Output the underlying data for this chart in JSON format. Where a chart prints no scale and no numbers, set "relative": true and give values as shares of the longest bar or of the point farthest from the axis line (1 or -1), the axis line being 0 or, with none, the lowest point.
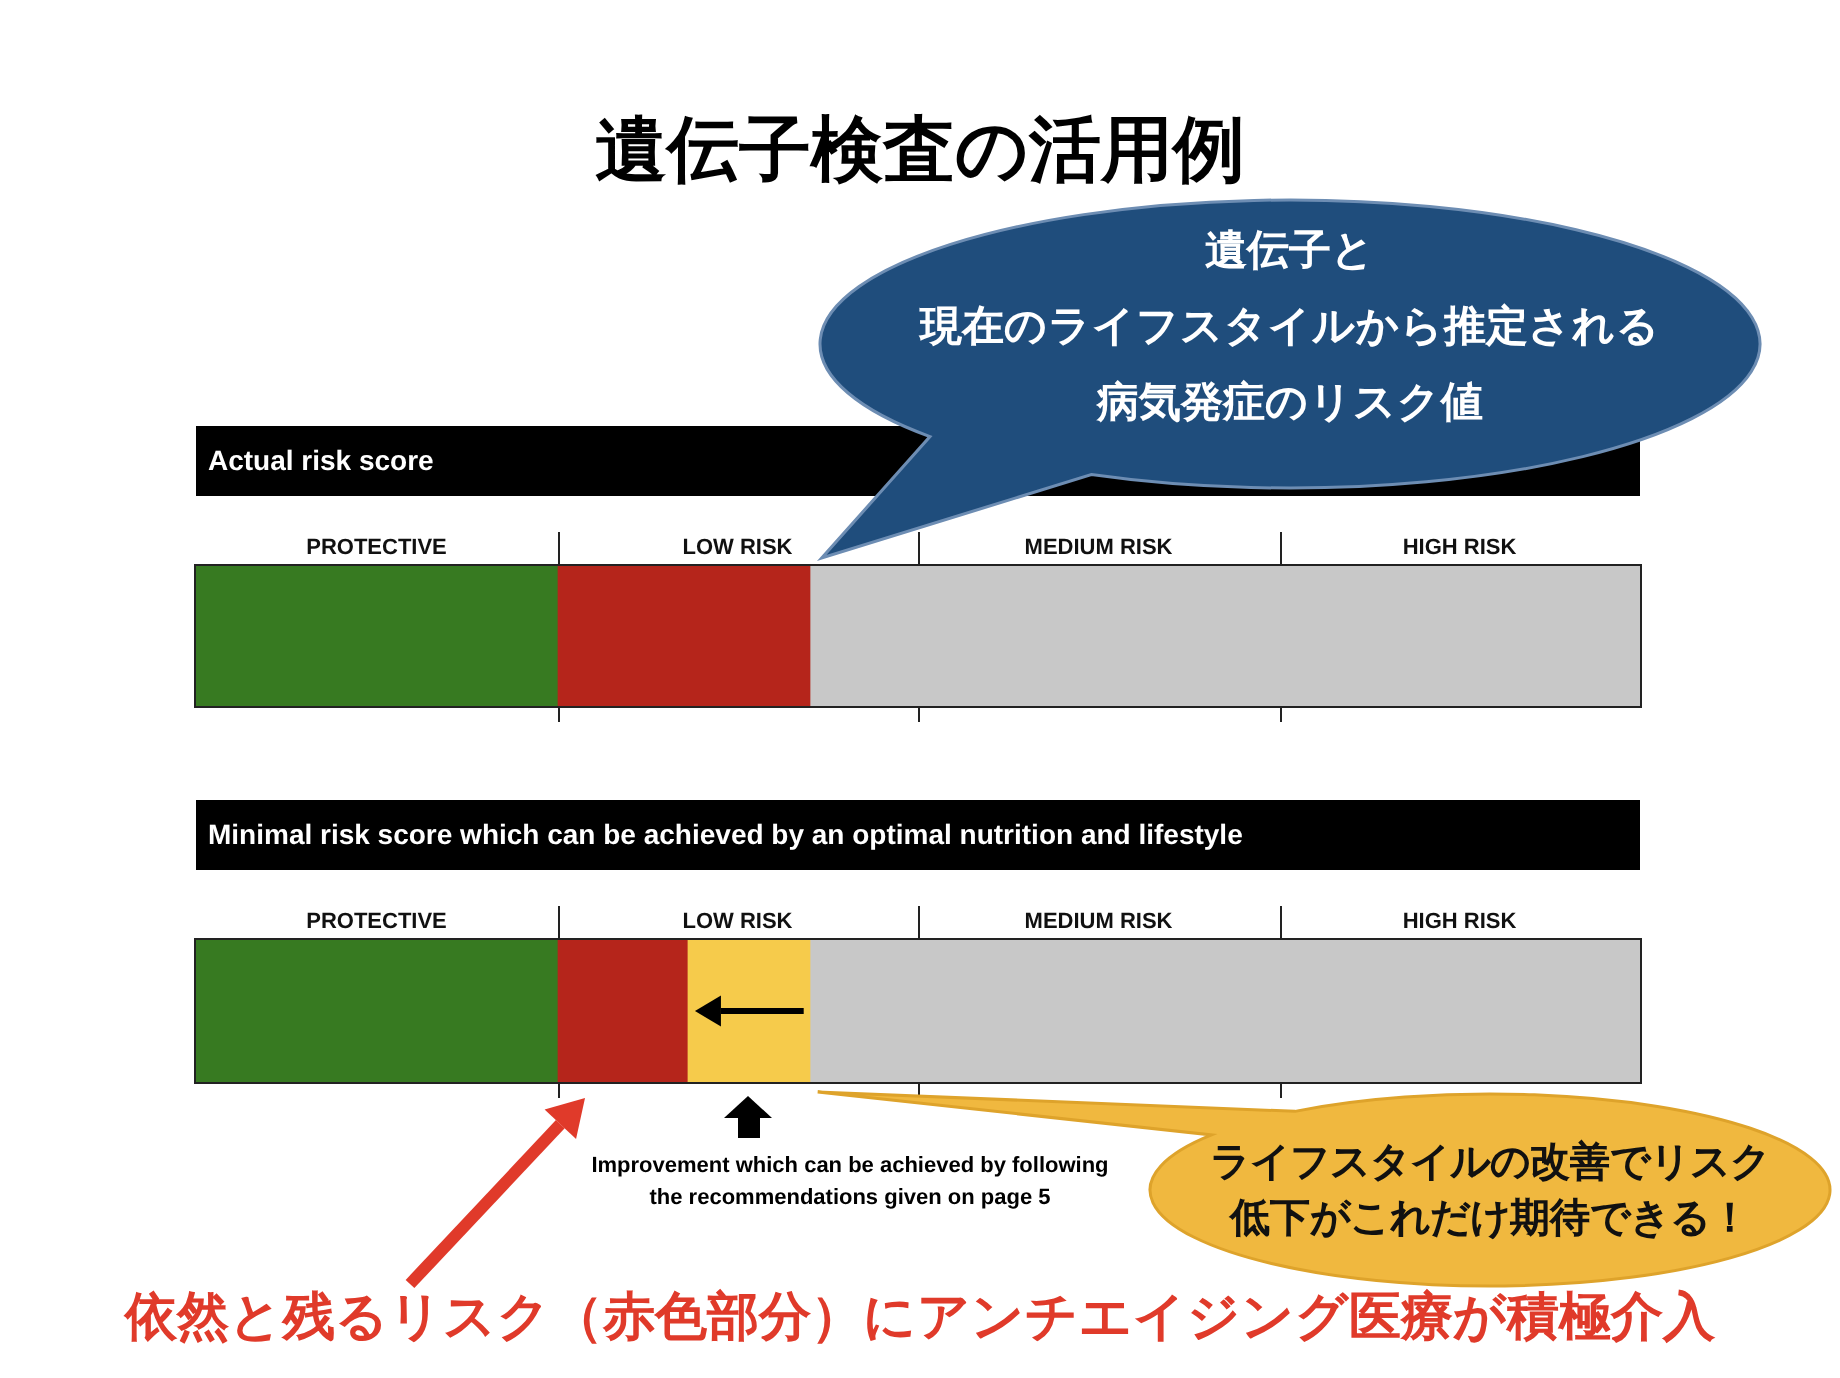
{
  "chart_data": [
    {
      "type": "other",
      "title": "遺伝子検査の活用例"
    },
    {
      "type": "bar",
      "orientation": "horizontal",
      "stacked": true,
      "relative": true,
      "title": "Actual risk score",
      "categories": [
        null
      ],
      "series": [
        {
          "color": "#377a21",
          "values": [
            0.25
          ]
        },
        {
          "color": "#b5251b",
          "values": [
            0.175
          ]
        },
        {
          "color": "#c8c8c8",
          "values": [
            0.575
          ]
        }
      ],
      "annotations": [
        "遺伝子と現在のライフスタイルから推定される病気発症のリスク値",
        "PROTECTIVE",
        "LOW RISK",
        "MEDIUM RISK",
        "HIGH RISK"
      ]
    },
    {
      "type": "bar",
      "orientation": "horizontal",
      "stacked": true,
      "relative": true,
      "title": "Minimal risk score which can be achieved by an optimal nutrition and lifestyle",
      "categories": [
        null
      ],
      "series": [
        {
          "color": "#377a21",
          "values": [
            0.25
          ]
        },
        {
          "color": "#b5251b",
          "values": [
            0.09
          ]
        },
        {
          "color": "#f6cb4b",
          "values": [
            0.085
          ]
        },
        {
          "color": "#c8c8c8",
          "values": [
            0.575
          ]
        }
      ],
      "annotations": [
        "ライフスタイルの改善でリスク低下がこれだけ期待できる！",
        "Improvement which can be achieved by following\nthe recommendations given on page 5",
        "依然と残るリスク（赤色部分）にアンチエイジング医療が積極介入",
        "PROTECTIVE",
        "LOW RISK",
        "MEDIUM RISK",
        "HIGH RISK"
      ]
    }
  ]
}
